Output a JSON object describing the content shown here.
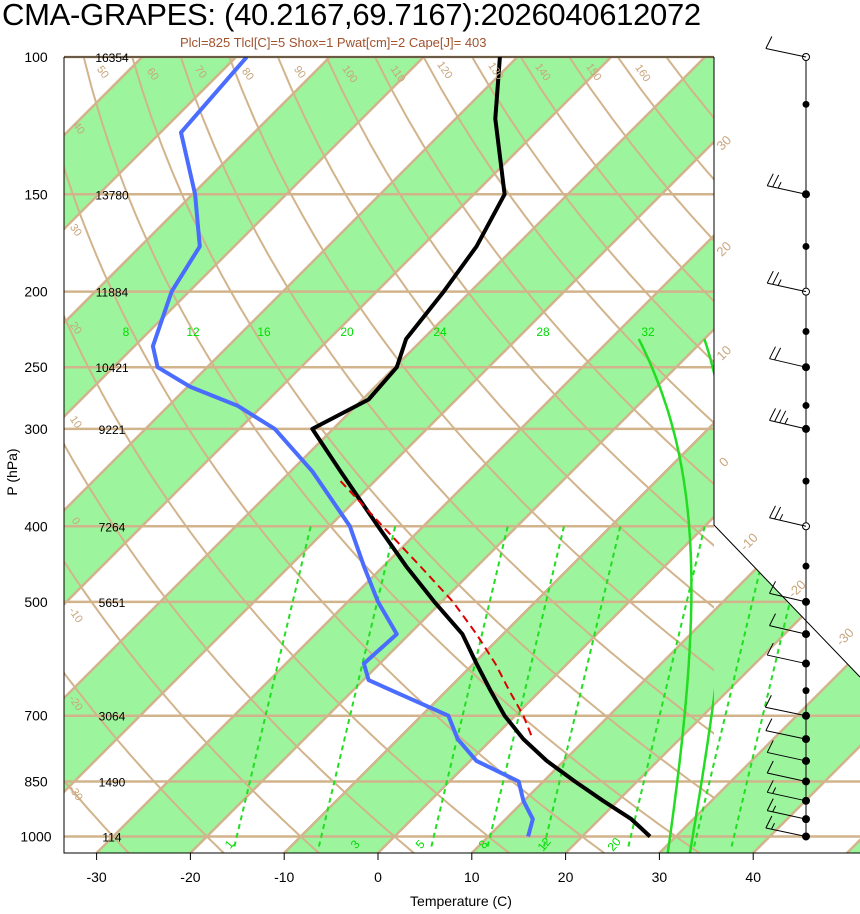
{
  "chart_data": {
    "type": "line",
    "title": "CMA-GRAPES: (40.2167,69.7167):2026040612072",
    "subtitle": "Plcl=825 Tlcl[C]=5 Shox=1 Pwat[cm]=2 Cape[J]= 403",
    "xlabel": "Temperature (C)",
    "ylabel": "P (hPa)",
    "xlim": [
      -33,
      51
    ],
    "x_ticks": [
      -30,
      -20,
      -10,
      0,
      10,
      20,
      30,
      40
    ],
    "pressure_levels": [
      100,
      150,
      200,
      250,
      300,
      400,
      500,
      700,
      850,
      1000
    ],
    "heights_m": [
      "16354",
      "13780",
      "11884",
      "10421",
      "9221",
      "7264",
      "5651",
      "3064",
      "1490",
      "114"
    ],
    "dry_adiabat_labels": [
      "50",
      "60",
      "70",
      "80",
      "90",
      "100",
      "110",
      "120",
      "130",
      "140",
      "150",
      "160",
      "40",
      "30",
      "20",
      "10",
      "0",
      "-10",
      "-20",
      "-30"
    ],
    "skewed_temp_labels": [
      "30",
      "20",
      "10",
      "0",
      "-10",
      "-20",
      "-30",
      "-40"
    ],
    "moist_adiabat_labels": [
      "8",
      "12",
      "16",
      "20",
      "24",
      "28",
      "32"
    ],
    "mixing_ratio_labels": [
      "1",
      "3",
      "5",
      "8",
      "12",
      "20"
    ],
    "series": [
      {
        "name": "Temperature",
        "color": "#000000",
        "points": [
          [
            100,
            13
          ],
          [
            120,
            12.5
          ],
          [
            150,
            13.5
          ],
          [
            175,
            10.5
          ],
          [
            200,
            7
          ],
          [
            230,
            3
          ],
          [
            250,
            2
          ],
          [
            275,
            -1
          ],
          [
            300,
            -7
          ],
          [
            340,
            -4
          ],
          [
            400,
            0
          ],
          [
            450,
            3
          ],
          [
            500,
            6
          ],
          [
            550,
            9
          ],
          [
            600,
            10.5
          ],
          [
            650,
            12
          ],
          [
            700,
            13.5
          ],
          [
            750,
            15.5
          ],
          [
            800,
            18
          ],
          [
            850,
            21
          ],
          [
            900,
            24
          ],
          [
            950,
            27
          ],
          [
            1000,
            29
          ]
        ]
      },
      {
        "name": "Dew point",
        "color": "#4a6cff",
        "points": [
          [
            100,
            -14
          ],
          [
            125,
            -21
          ],
          [
            150,
            -19.5
          ],
          [
            175,
            -19
          ],
          [
            200,
            -22
          ],
          [
            235,
            -24
          ],
          [
            250,
            -23.5
          ],
          [
            265,
            -20
          ],
          [
            280,
            -15
          ],
          [
            300,
            -11
          ],
          [
            340,
            -7
          ],
          [
            400,
            -3
          ],
          [
            450,
            -1.5
          ],
          [
            500,
            0
          ],
          [
            550,
            2
          ],
          [
            600,
            -1.5
          ],
          [
            630,
            -1
          ],
          [
            700,
            7.5
          ],
          [
            750,
            8.5
          ],
          [
            800,
            10.5
          ],
          [
            850,
            15
          ],
          [
            900,
            15.5
          ],
          [
            950,
            16.5
          ],
          [
            1000,
            16
          ]
        ]
      },
      {
        "name": "Parcel",
        "color": "#dd0000",
        "dashed": true,
        "points": [
          [
            350,
            -4
          ],
          [
            400,
            0.5
          ],
          [
            450,
            4.5
          ],
          [
            500,
            8
          ],
          [
            550,
            10.5
          ],
          [
            600,
            12.5
          ],
          [
            650,
            14
          ],
          [
            700,
            15.5
          ],
          [
            750,
            16.5
          ]
        ]
      }
    ],
    "wind_barbs": [
      {
        "p": 100,
        "speed_kt": 10,
        "dir": 260
      },
      {
        "p": 150,
        "speed_kt": 15,
        "dir": 250
      },
      {
        "p": 200,
        "speed_kt": 15,
        "dir": 250
      },
      {
        "p": 250,
        "speed_kt": 20,
        "dir": 240
      },
      {
        "p": 300,
        "speed_kt": 25,
        "dir": 240
      },
      {
        "p": 400,
        "speed_kt": 15,
        "dir": 240
      },
      {
        "p": 500,
        "speed_kt": 10,
        "dir": 240
      },
      {
        "p": 550,
        "speed_kt": 10,
        "dir": 240
      },
      {
        "p": 600,
        "speed_kt": 10,
        "dir": 250
      },
      {
        "p": 700,
        "speed_kt": 10,
        "dir": 270
      },
      {
        "p": 750,
        "speed_kt": 10,
        "dir": 280
      },
      {
        "p": 800,
        "speed_kt": 10,
        "dir": 290
      },
      {
        "p": 850,
        "speed_kt": 10,
        "dir": 290
      },
      {
        "p": 900,
        "speed_kt": 5,
        "dir": 290
      },
      {
        "p": 950,
        "speed_kt": 5,
        "dir": 290
      },
      {
        "p": 1000,
        "speed_kt": 5,
        "dir": 280
      }
    ],
    "colors": {
      "isotherm_band": "#9cf59c",
      "grid": "#d2b48c",
      "moist_adiabat": "#22dd22",
      "mixing_ratio": "#22dd22"
    }
  }
}
